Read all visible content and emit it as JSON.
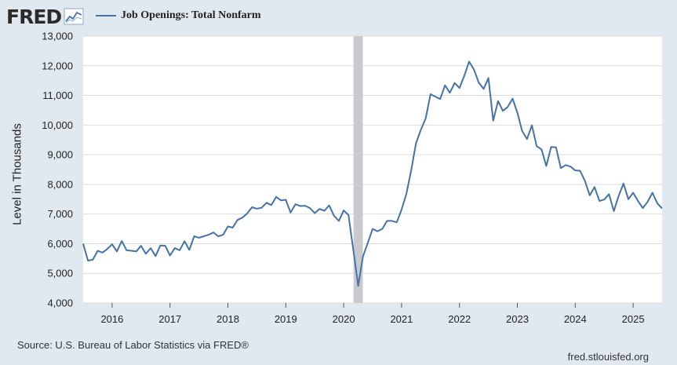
{
  "header": {
    "logo_text": "FRED",
    "logo_icon": "line-chart-icon",
    "series_title": "Job Openings: Total Nonfarm"
  },
  "colors": {
    "background": "#e1e9f0",
    "plot_background": "#ffffff",
    "series": "#4572a7",
    "recession": "#c8cacd"
  },
  "footer": {
    "source": "Source: U.S. Bureau of Labor Statistics via FRED®",
    "url": "fred.stlouisfed.org"
  },
  "chart_data": {
    "type": "line",
    "title": "",
    "xlabel": "",
    "ylabel": "Level in Thousands",
    "ylim": [
      4000,
      13000
    ],
    "xlim": [
      2015.5,
      2025.5
    ],
    "yticks": [
      4000,
      5000,
      6000,
      7000,
      8000,
      9000,
      10000,
      11000,
      12000,
      13000
    ],
    "ytick_labels": [
      "4,000",
      "5,000",
      "6,000",
      "7,000",
      "8,000",
      "9,000",
      "10,000",
      "11,000",
      "12,000",
      "13,000"
    ],
    "xticks": [
      2016,
      2017,
      2018,
      2019,
      2020,
      2021,
      2022,
      2023,
      2024,
      2025
    ],
    "xtick_labels": [
      "2016",
      "2017",
      "2018",
      "2019",
      "2020",
      "2021",
      "2022",
      "2023",
      "2024",
      "2025"
    ],
    "grid": "horizontal",
    "legend": "top-left",
    "recession_shading": [
      2020.17,
      2020.33
    ],
    "series": [
      {
        "name": "Job Openings: Total Nonfarm",
        "start": "2015-07",
        "frequency": "monthly",
        "values": [
          6000,
          5430,
          5460,
          5760,
          5700,
          5820,
          5980,
          5740,
          6090,
          5780,
          5760,
          5740,
          5930,
          5660,
          5850,
          5580,
          5940,
          5930,
          5600,
          5850,
          5780,
          6080,
          5790,
          6250,
          6200,
          6250,
          6300,
          6380,
          6250,
          6300,
          6580,
          6540,
          6800,
          6880,
          7020,
          7230,
          7180,
          7210,
          7380,
          7300,
          7580,
          7460,
          7480,
          7050,
          7330,
          7270,
          7280,
          7200,
          7030,
          7170,
          7110,
          7290,
          6940,
          6770,
          7120,
          6970,
          5790,
          4580,
          5570,
          6030,
          6500,
          6420,
          6500,
          6770,
          6770,
          6720,
          7150,
          7680,
          8480,
          9390,
          9840,
          10230,
          11040,
          10960,
          10880,
          11340,
          11090,
          11420,
          11250,
          11660,
          12140,
          11870,
          11430,
          11220,
          11590,
          10150,
          10810,
          10480,
          10610,
          10890,
          10420,
          9800,
          9530,
          9990,
          9290,
          9180,
          8620,
          9260,
          9250,
          8550,
          8650,
          8600,
          8470,
          8460,
          8120,
          7630,
          7910,
          7440,
          7490,
          7670,
          7100,
          7610,
          8030,
          7500,
          7720,
          7440,
          7200,
          7410,
          7720,
          7360,
          7190
        ]
      }
    ]
  }
}
